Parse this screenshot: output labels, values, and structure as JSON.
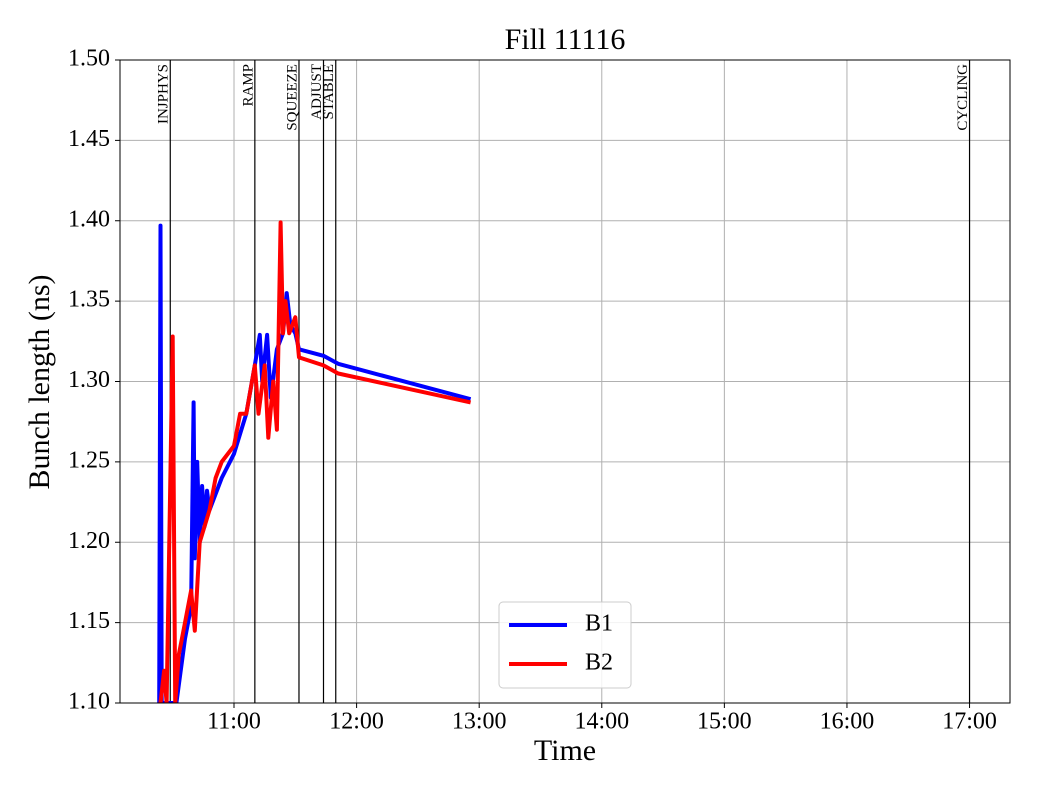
{
  "chart_data": {
    "type": "line",
    "title": "Fill 11116",
    "xlabel": "Time",
    "ylabel": "Bunch length (ns)",
    "xlim": [
      10.07,
      17.33
    ],
    "xticks": [
      {
        "value": 11,
        "label": "11:00"
      },
      {
        "value": 12,
        "label": "12:00"
      },
      {
        "value": 13,
        "label": "13:00"
      },
      {
        "value": 14,
        "label": "14:00"
      },
      {
        "value": 15,
        "label": "15:00"
      },
      {
        "value": 16,
        "label": "16:00"
      },
      {
        "value": 17,
        "label": "17:00"
      }
    ],
    "ylim": [
      1.1,
      1.5
    ],
    "yticks": [
      {
        "value": 1.1,
        "label": "1.10"
      },
      1.15,
      {
        "value": 1.2,
        "label": "1.20"
      },
      1.25,
      {
        "value": 1.3,
        "label": "1.30"
      },
      1.35,
      {
        "value": 1.4,
        "label": "1.40"
      },
      1.45,
      {
        "value": 1.5,
        "label": "1.50"
      }
    ],
    "grid": true,
    "legend": "lower center",
    "events": [
      {
        "label": "INJPHYS",
        "x": 10.48
      },
      {
        "label": "RAMP",
        "x": 11.17
      },
      {
        "label": "SQUEEZE",
        "x": 11.53
      },
      {
        "label": "ADJUST",
        "x": 11.73
      },
      {
        "label": "STABLE",
        "x": 11.83
      },
      {
        "label": "CYCLING",
        "x": 17.0
      }
    ],
    "series": [
      {
        "name": "B1",
        "color": "#0000ff",
        "x": [
          10.39,
          10.4,
          10.41,
          10.53,
          10.6,
          10.65,
          10.67,
          10.68,
          10.7,
          10.72,
          10.74,
          10.76,
          10.78,
          10.8,
          10.9,
          11.0,
          11.1,
          11.17,
          11.21,
          11.23,
          11.27,
          11.3,
          11.35,
          11.4,
          11.43,
          11.46,
          11.5,
          11.53,
          11.73,
          11.85,
          12.93
        ],
        "values": [
          1.1,
          1.397,
          1.1,
          1.1,
          1.14,
          1.16,
          1.287,
          1.19,
          1.25,
          1.2,
          1.235,
          1.21,
          1.232,
          1.22,
          1.24,
          1.255,
          1.28,
          1.31,
          1.329,
          1.3,
          1.329,
          1.29,
          1.32,
          1.33,
          1.355,
          1.335,
          1.33,
          1.32,
          1.316,
          1.311,
          1.289
        ]
      },
      {
        "name": "B2",
        "color": "#ff0000",
        "x": [
          10.4,
          10.43,
          10.45,
          10.5,
          10.52,
          10.55,
          10.6,
          10.65,
          10.68,
          10.72,
          10.8,
          10.85,
          10.9,
          11.0,
          11.05,
          11.1,
          11.17,
          11.2,
          11.25,
          11.28,
          11.32,
          11.35,
          11.38,
          11.4,
          11.42,
          11.45,
          11.5,
          11.53,
          11.73,
          11.85,
          12.93
        ],
        "values": [
          1.1,
          1.12,
          1.1,
          1.328,
          1.1,
          1.13,
          1.15,
          1.17,
          1.145,
          1.2,
          1.22,
          1.24,
          1.25,
          1.26,
          1.28,
          1.28,
          1.31,
          1.28,
          1.31,
          1.265,
          1.3,
          1.27,
          1.399,
          1.33,
          1.35,
          1.33,
          1.34,
          1.315,
          1.31,
          1.305,
          1.287
        ]
      }
    ]
  }
}
